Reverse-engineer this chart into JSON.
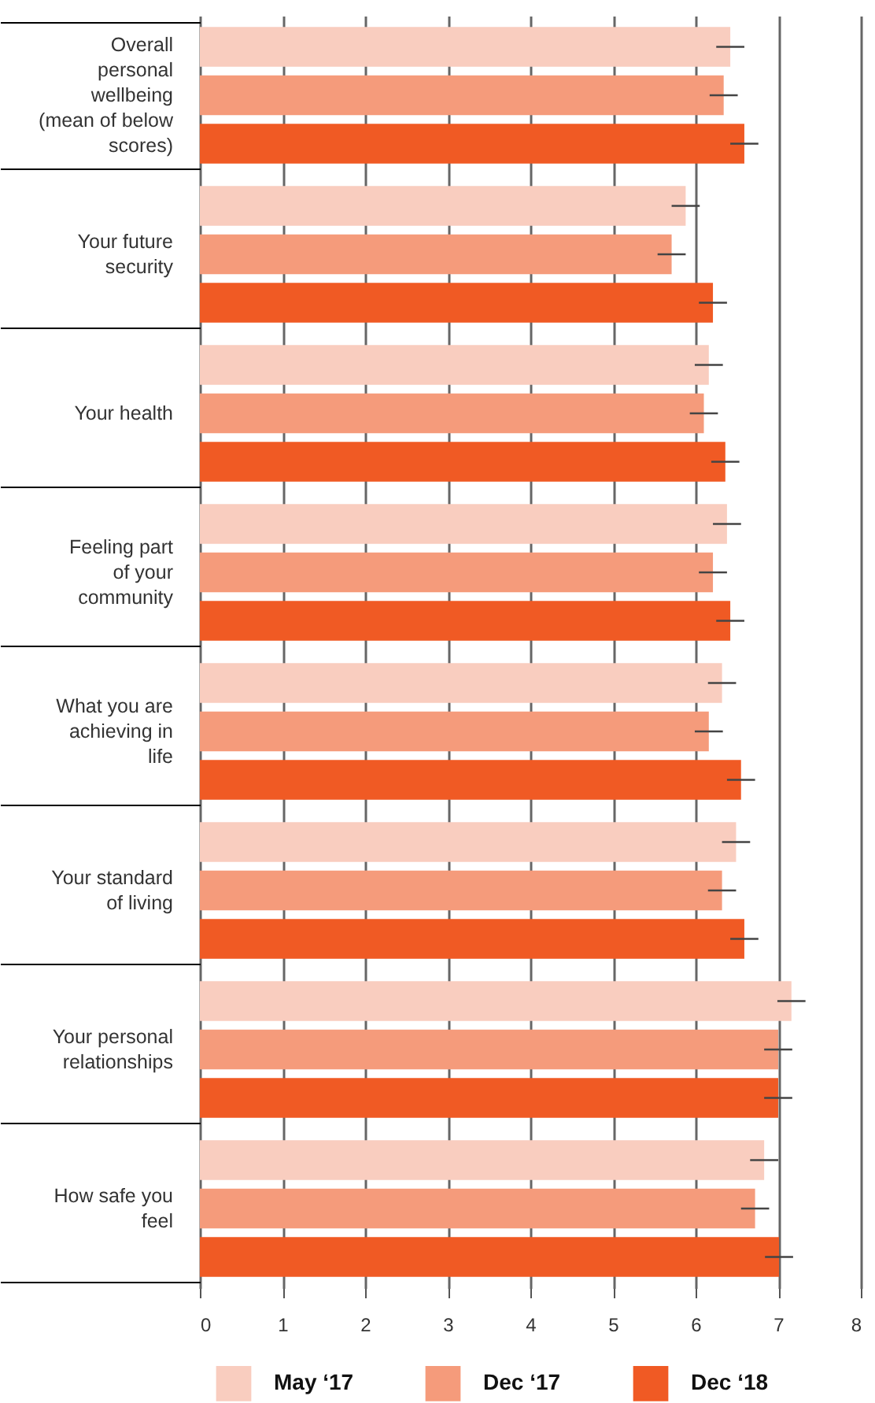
{
  "chart_data": {
    "type": "bar",
    "orientation": "horizontal",
    "categories": [
      "Overall personal wellbeing (mean of below scores)",
      "Your future security",
      "Your health",
      "Feeling part of your community",
      "What you are achieving in life",
      "Your standard of living",
      "Your personal relationships",
      "How safe you feel"
    ],
    "series": [
      {
        "name": "May ‘17",
        "color": "#f9cdbf",
        "values": [
          6.42,
          5.88,
          6.16,
          6.38,
          6.32,
          6.49,
          7.16,
          6.83
        ],
        "errors": [
          0.17,
          0.17,
          0.17,
          0.17,
          0.17,
          0.17,
          0.17,
          0.17
        ]
      },
      {
        "name": "Dec ‘17",
        "color": "#f59b7b",
        "values": [
          6.34,
          5.71,
          6.1,
          6.21,
          6.16,
          6.32,
          7.0,
          6.72
        ],
        "errors": [
          0.17,
          0.17,
          0.17,
          0.17,
          0.17,
          0.17,
          0.17,
          0.17
        ]
      },
      {
        "name": "Dec ‘18",
        "color": "#f05a24",
        "values": [
          6.59,
          6.21,
          6.36,
          6.42,
          6.55,
          6.59,
          7.0,
          7.01
        ],
        "errors": [
          0.17,
          0.17,
          0.17,
          0.17,
          0.17,
          0.17,
          0.17,
          0.17
        ]
      }
    ],
    "xlim": [
      0,
      8
    ],
    "xticks": [
      0,
      1,
      2,
      3,
      4,
      5,
      6,
      7,
      8
    ],
    "grid": "x",
    "legend": "bottom"
  }
}
